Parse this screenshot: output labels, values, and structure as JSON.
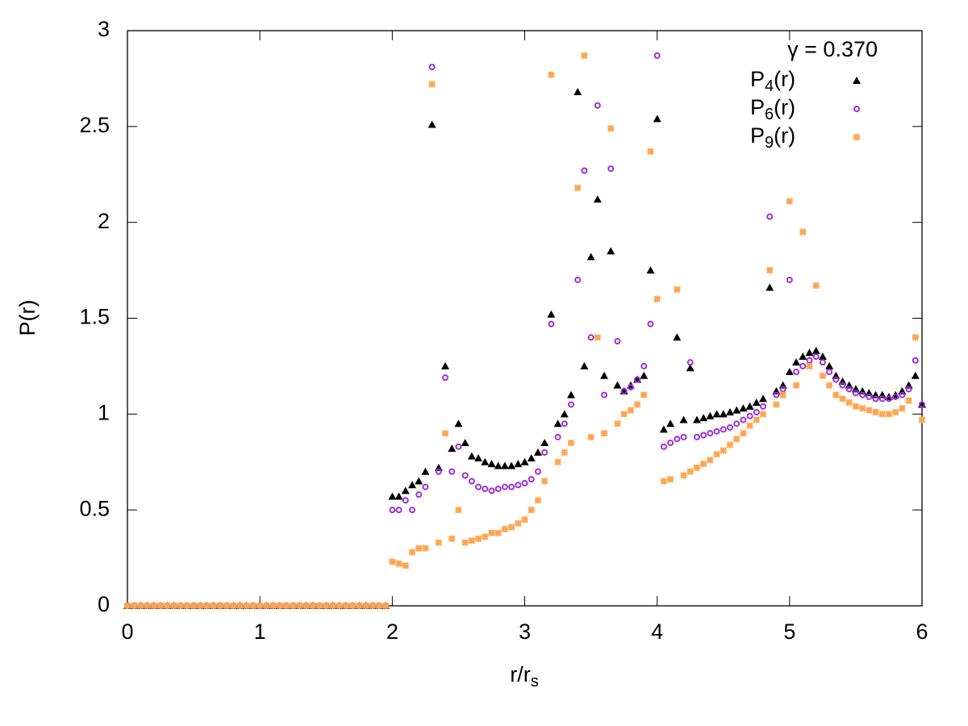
{
  "chart_data": {
    "type": "scatter",
    "xlabel": "r/rs",
    "ylabel": "P(r)",
    "annotation": "γ = 0.370",
    "xlim": [
      0,
      6
    ],
    "ylim": [
      0,
      3
    ],
    "xticks": [
      0,
      1,
      2,
      3,
      4,
      5,
      6
    ],
    "yticks": [
      0,
      0.5,
      1,
      1.5,
      2,
      2.5,
      3
    ],
    "legend": "upper right",
    "x": [
      0,
      0.05,
      0.1,
      0.15,
      0.2,
      0.25,
      0.3,
      0.35,
      0.4,
      0.45,
      0.5,
      0.55,
      0.6,
      0.65,
      0.7,
      0.75,
      0.8,
      0.85,
      0.9,
      0.95,
      1,
      1.05,
      1.1,
      1.15,
      1.2,
      1.25,
      1.3,
      1.35,
      1.4,
      1.45,
      1.5,
      1.55,
      1.6,
      1.65,
      1.7,
      1.75,
      1.8,
      1.85,
      1.9,
      1.95,
      2,
      2.05,
      2.1,
      2.15,
      2.2,
      2.25,
      2.3,
      2.35,
      2.4,
      2.45,
      2.5,
      2.55,
      2.6,
      2.65,
      2.7,
      2.75,
      2.8,
      2.85,
      2.9,
      2.95,
      3,
      3.05,
      3.1,
      3.15,
      3.2,
      3.25,
      3.3,
      3.35,
      3.4,
      3.45,
      3.5,
      3.55,
      3.6,
      3.65,
      3.7,
      3.75,
      3.8,
      3.85,
      3.9,
      3.95,
      4,
      4.05,
      4.1,
      4.15,
      4.2,
      4.25,
      4.3,
      4.35,
      4.4,
      4.45,
      4.5,
      4.55,
      4.6,
      4.65,
      4.7,
      4.75,
      4.8,
      4.85,
      4.9,
      4.95,
      5,
      5.05,
      5.1,
      5.15,
      5.2,
      5.25,
      5.3,
      5.35,
      5.4,
      5.45,
      5.5,
      5.55,
      5.6,
      5.65,
      5.7,
      5.75,
      5.8,
      5.85,
      5.9,
      5.95,
      6
    ],
    "series": [
      {
        "name": "P4(r)",
        "color": "#000000",
        "marker": "triangle",
        "values": [
          0,
          0,
          0,
          0,
          0,
          0,
          0,
          0,
          0,
          0,
          0,
          0,
          0,
          0,
          0,
          0,
          0,
          0,
          0,
          0,
          0,
          0,
          0,
          0,
          0,
          0,
          0,
          0,
          0,
          0,
          0,
          0,
          0,
          0,
          0,
          0,
          0,
          0,
          0,
          0,
          0.57,
          0.57,
          0.6,
          0.63,
          0.65,
          0.7,
          2.51,
          0.72,
          1.25,
          0.82,
          0.95,
          0.85,
          0.78,
          0.77,
          0.75,
          0.74,
          0.73,
          0.73,
          0.73,
          0.74,
          0.75,
          0.77,
          0.8,
          0.85,
          1.52,
          0.95,
          1.0,
          1.1,
          2.68,
          1.25,
          1.82,
          2.12,
          1.2,
          1.85,
          1.15,
          1.12,
          1.15,
          1.18,
          1.2,
          1.75,
          2.54,
          0.92,
          0.95,
          1.4,
          0.97,
          1.24,
          0.97,
          0.98,
          0.99,
          1.0,
          1.0,
          1.01,
          1.02,
          1.03,
          1.04,
          1.06,
          1.08,
          1.66,
          1.12,
          1.15,
          1.22,
          1.27,
          1.3,
          1.32,
          1.33,
          1.3,
          1.25,
          1.2,
          1.17,
          1.15,
          1.13,
          1.12,
          1.11,
          1.1,
          1.1,
          1.09,
          1.1,
          1.12,
          1.15,
          1.2,
          1.05
        ]
      },
      {
        "name": "P6(r)",
        "color": "#9b30d9",
        "marker": "circle",
        "values": [
          0,
          0,
          0,
          0,
          0,
          0,
          0,
          0,
          0,
          0,
          0,
          0,
          0,
          0,
          0,
          0,
          0,
          0,
          0,
          0,
          0,
          0,
          0,
          0,
          0,
          0,
          0,
          0,
          0,
          0,
          0,
          0,
          0,
          0,
          0,
          0,
          0,
          0,
          0,
          0,
          0.5,
          0.5,
          0.55,
          0.5,
          0.58,
          0.62,
          2.81,
          0.7,
          1.19,
          0.7,
          0.83,
          0.68,
          0.65,
          0.62,
          0.61,
          0.6,
          0.61,
          0.62,
          0.62,
          0.63,
          0.64,
          0.66,
          0.7,
          0.8,
          1.47,
          0.88,
          0.95,
          1.05,
          1.7,
          2.27,
          1.4,
          2.61,
          1.1,
          2.28,
          1.38,
          1.12,
          1.14,
          1.18,
          1.25,
          1.47,
          2.87,
          0.83,
          0.85,
          0.87,
          0.88,
          1.27,
          0.88,
          0.89,
          0.9,
          0.91,
          0.92,
          0.93,
          0.95,
          0.97,
          0.99,
          1.01,
          1.04,
          2.03,
          1.1,
          1.13,
          1.7,
          1.22,
          1.25,
          1.28,
          1.3,
          1.27,
          1.22,
          1.18,
          1.15,
          1.13,
          1.11,
          1.1,
          1.09,
          1.08,
          1.08,
          1.08,
          1.09,
          1.1,
          1.13,
          1.28,
          1.05
        ]
      },
      {
        "name": "P9(r)",
        "color": "#ffa54f",
        "marker": "cross",
        "values": [
          0,
          0,
          0,
          0,
          0,
          0,
          0,
          0,
          0,
          0,
          0,
          0,
          0,
          0,
          0,
          0,
          0,
          0,
          0,
          0,
          0,
          0,
          0,
          0,
          0,
          0,
          0,
          0,
          0,
          0,
          0,
          0,
          0,
          0,
          0,
          0,
          0,
          0,
          0,
          0,
          0.23,
          0.22,
          0.21,
          0.28,
          0.3,
          0.3,
          2.72,
          0.33,
          0.9,
          0.35,
          0.5,
          0.33,
          0.34,
          0.35,
          0.36,
          0.38,
          0.38,
          0.4,
          0.41,
          0.43,
          0.45,
          0.5,
          0.55,
          0.65,
          2.77,
          0.75,
          0.8,
          0.85,
          2.18,
          2.87,
          0.88,
          1.4,
          0.9,
          2.49,
          0.95,
          1.0,
          1.02,
          1.05,
          1.1,
          2.37,
          1.6,
          0.65,
          0.66,
          1.65,
          0.68,
          0.7,
          0.72,
          0.74,
          0.76,
          0.79,
          0.81,
          0.84,
          0.87,
          0.9,
          0.94,
          0.97,
          1.0,
          1.75,
          1.05,
          1.1,
          2.11,
          1.15,
          1.95,
          1.25,
          1.67,
          1.2,
          1.15,
          1.1,
          1.08,
          1.06,
          1.04,
          1.03,
          1.02,
          1.01,
          1.0,
          1.0,
          1.01,
          1.03,
          1.07,
          1.4,
          0.97
        ]
      }
    ]
  }
}
